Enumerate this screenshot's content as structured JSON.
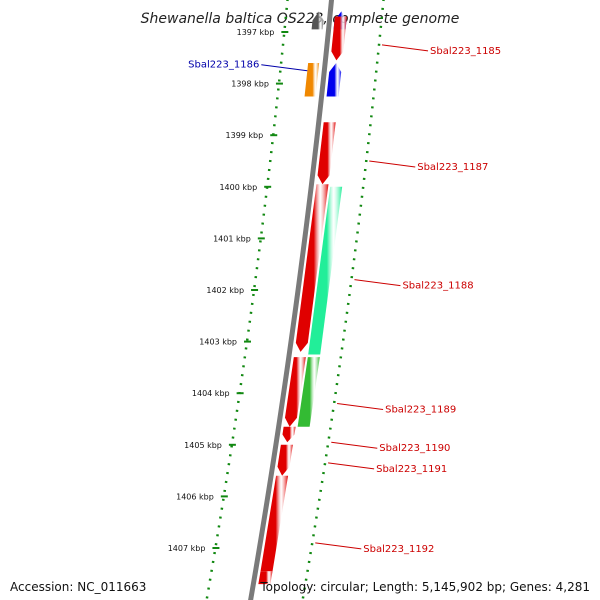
{
  "title": "Shewanella baltica OS223, complete genome",
  "footer": {
    "accession": "Accession: NC_011663",
    "topology": "Topology: circular; Length: 5,145,902 bp; Genes: 4,281"
  },
  "colors": {
    "backbone": "#7a7a7a",
    "ruler": "#118811",
    "label_forward": "#cc0000",
    "label_reverse": "#0000aa",
    "gene_red": "#e00000",
    "gene_blue": "#0000ee",
    "gene_orange": "#f08800",
    "gene_seafoam": "#22ee99",
    "gene_green": "#33bb33",
    "gene_gray": "#555555"
  },
  "ruler_ticks": [
    {
      "kbp": 1397,
      "label": "1397 kbp"
    },
    {
      "kbp": 1398,
      "label": "1398 kbp"
    },
    {
      "kbp": 1399,
      "label": "1399 kbp"
    },
    {
      "kbp": 1400,
      "label": "1400 kbp"
    },
    {
      "kbp": 1401,
      "label": "1401 kbp"
    },
    {
      "kbp": 1402,
      "label": "1402 kbp"
    },
    {
      "kbp": 1403,
      "label": "1403 kbp"
    },
    {
      "kbp": 1404,
      "label": "1404 kbp"
    },
    {
      "kbp": 1405,
      "label": "1405 kbp"
    },
    {
      "kbp": 1406,
      "label": "1406 kbp"
    },
    {
      "kbp": 1407,
      "label": "1407 kbp"
    }
  ],
  "genes": [
    {
      "name": "",
      "start_kbp": 1396.6,
      "end_kbp": 1396.95,
      "strand": "forward",
      "lane": "inner",
      "color": "gene_gray"
    },
    {
      "name": "",
      "start_kbp": 1396.6,
      "end_kbp": 1396.95,
      "strand": "forward",
      "lane": "outer",
      "color": "gene_blue"
    },
    {
      "name": "Sbal223_1185",
      "start_kbp": 1396.7,
      "end_kbp": 1397.55,
      "strand": "reverse",
      "lane": "outer",
      "color": "gene_red",
      "label": "Sbal223_1185",
      "label_kbp": 1397.25
    },
    {
      "name": "Sbal223_1186",
      "start_kbp": 1397.6,
      "end_kbp": 1398.25,
      "strand": "none",
      "lane": "inner",
      "color": "gene_orange",
      "label": "Sbal223_1186",
      "label_kbp": 1397.75,
      "label_side": "left"
    },
    {
      "name": "",
      "start_kbp": 1397.6,
      "end_kbp": 1398.25,
      "strand": "forward",
      "lane": "outer",
      "color": "gene_blue"
    },
    {
      "name": "Sbal223_1187",
      "start_kbp": 1398.75,
      "end_kbp": 1399.95,
      "strand": "reverse",
      "lane": "outer",
      "color": "gene_red",
      "label": "Sbal223_1187",
      "label_kbp": 1399.5
    },
    {
      "name": "",
      "start_kbp": 1399.95,
      "end_kbp": 1403.2,
      "strand": "reverse",
      "lane": "outer",
      "color": "gene_red"
    },
    {
      "name": "Sbal223_1188",
      "start_kbp": 1400.0,
      "end_kbp": 1403.25,
      "strand": "none",
      "lane": "outer2",
      "color": "gene_seafoam",
      "label": "Sbal223_1188",
      "label_kbp": 1401.8
    },
    {
      "name": "",
      "start_kbp": 1403.3,
      "end_kbp": 1404.65,
      "strand": "reverse",
      "lane": "outer",
      "color": "gene_red"
    },
    {
      "name": "Sbal223_1189",
      "start_kbp": 1403.3,
      "end_kbp": 1404.65,
      "strand": "none",
      "lane": "outer2",
      "color": "gene_green",
      "label": "Sbal223_1189",
      "label_kbp": 1404.2
    },
    {
      "name": "Sbal223_1190",
      "start_kbp": 1404.65,
      "end_kbp": 1404.95,
      "strand": "reverse",
      "lane": "outer",
      "color": "gene_red",
      "label": "Sbal223_1190",
      "label_kbp": 1404.95
    },
    {
      "name": "Sbal223_1191",
      "start_kbp": 1405.0,
      "end_kbp": 1405.6,
      "strand": "reverse",
      "lane": "outer",
      "color": "gene_red",
      "label": "Sbal223_1191",
      "label_kbp": 1405.35
    },
    {
      "name": "Sbal223_1192",
      "start_kbp": 1405.6,
      "end_kbp": 1407.45,
      "strand": "none",
      "lane": "outer",
      "color": "gene_red",
      "label": "Sbal223_1192",
      "label_kbp": 1406.9
    },
    {
      "name": "",
      "start_kbp": 1407.45,
      "end_kbp": 1407.7,
      "strand": "none",
      "lane": "outer",
      "color": "gene_red"
    }
  ]
}
